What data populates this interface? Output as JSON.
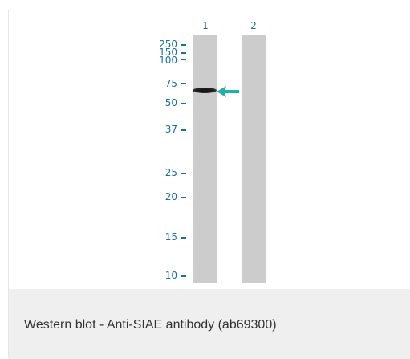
{
  "figure": {
    "lanes": [
      {
        "label": "1"
      },
      {
        "label": "2"
      }
    ],
    "markers": [
      "250",
      "150",
      "100",
      "75",
      "50",
      "37",
      "25",
      "20",
      "15",
      "10"
    ],
    "colors": {
      "marker_text": "#1a6fa0",
      "lane": "#cccccc",
      "arrow": "#21b0a5",
      "band": "#111111"
    }
  },
  "caption": {
    "text": "Western blot - Anti-SIAE antibody (ab69300)"
  }
}
